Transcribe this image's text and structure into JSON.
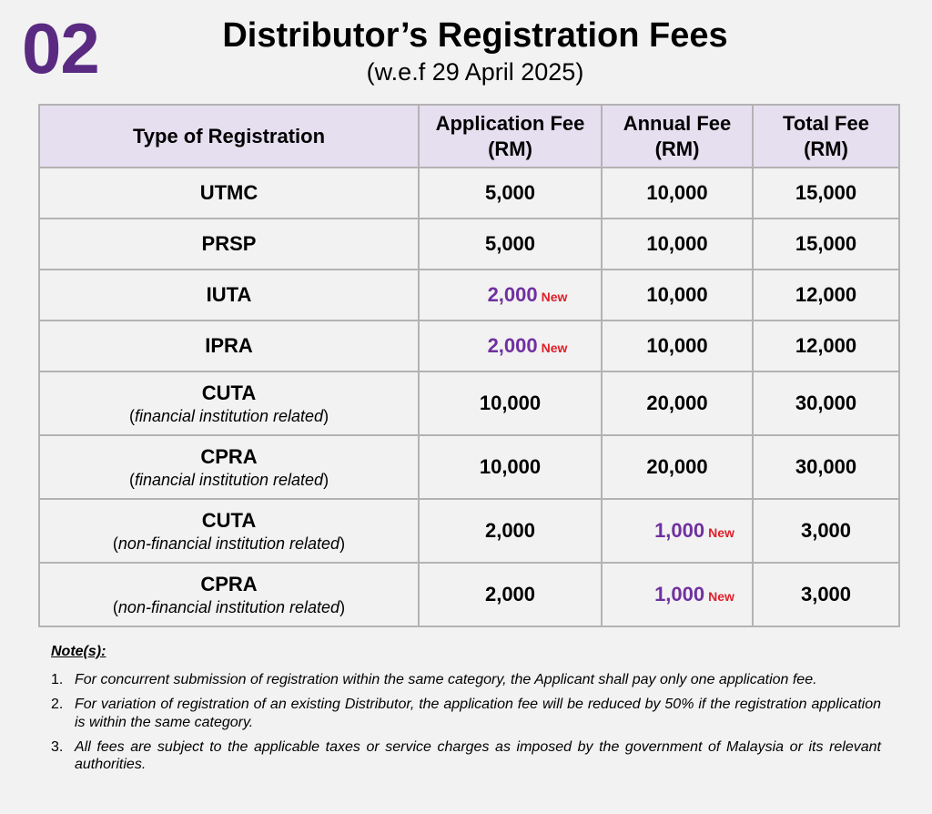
{
  "header": {
    "section_number": "02",
    "title": "Distributor’s Registration Fees",
    "subtitle": "(w.e.f 29 April 2025)"
  },
  "table": {
    "columns": [
      {
        "line1": "Type of Registration",
        "line2": ""
      },
      {
        "line1": "Application Fee",
        "line2": "(RM)"
      },
      {
        "line1": "Annual Fee",
        "line2": "(RM)"
      },
      {
        "line1": "Total Fee",
        "line2": "(RM)"
      }
    ],
    "rows": [
      {
        "type": "UTMC",
        "note": "",
        "application_fee": "5,000",
        "annual_fee": "10,000",
        "total_fee": "15,000"
      },
      {
        "type": "PRSP",
        "note": "",
        "application_fee": "5,000",
        "annual_fee": "10,000",
        "total_fee": "15,000"
      },
      {
        "type": "IUTA",
        "note": "",
        "application_fee": "2,000",
        "application_badge": "New",
        "annual_fee": "10,000",
        "total_fee": "12,000"
      },
      {
        "type": "IPRA",
        "note": "",
        "application_fee": "2,000",
        "application_badge": "New",
        "annual_fee": "10,000",
        "total_fee": "12,000"
      },
      {
        "type": "CUTA",
        "note": "financial institution related",
        "application_fee": "10,000",
        "annual_fee": "20,000",
        "total_fee": "30,000"
      },
      {
        "type": "CPRA",
        "note": "financial institution related",
        "application_fee": "10,000",
        "annual_fee": "20,000",
        "total_fee": "30,000"
      },
      {
        "type": "CUTA",
        "note": "non-financial institution related",
        "application_fee": "2,000",
        "annual_fee": "1,000",
        "annual_badge": "New",
        "total_fee": "3,000"
      },
      {
        "type": "CPRA",
        "note": "non-financial institution related",
        "application_fee": "2,000",
        "annual_fee": "1,000",
        "annual_badge": "New",
        "total_fee": "3,000"
      }
    ]
  },
  "notes": {
    "title": "Note(s):",
    "items": [
      {
        "num": "1.",
        "text": "For concurrent submission of registration within the same category, the Applicant shall pay only one application fee."
      },
      {
        "num": "2.",
        "text": "For variation of registration of an existing Distributor, the application fee will be reduced by 50% if the registration application is within the same category."
      },
      {
        "num": "3.",
        "text": " All fees are subject to the applicable taxes or service charges as imposed by the government of Malaysia or its relevant authorities."
      }
    ]
  },
  "colors": {
    "accent_purple": "#5a2a82",
    "new_value_purple": "#7030a0",
    "new_tag_red": "#e0202a",
    "header_fill": "#e6dff0",
    "background": "#f2f2f2"
  }
}
